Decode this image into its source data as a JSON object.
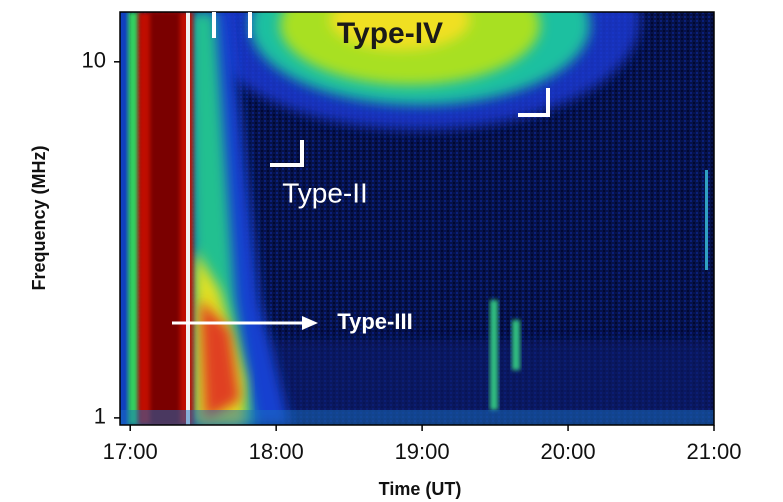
{
  "chart_data": {
    "type": "spectrogram",
    "xlabel": "Time (UT)",
    "ylabel": "Frequency (MHz)",
    "xlim": [
      16.93,
      21.0
    ],
    "xticks": [
      {
        "value": 17,
        "label": "17:00"
      },
      {
        "value": 18,
        "label": "18:00"
      },
      {
        "value": 19,
        "label": "19:00"
      },
      {
        "value": 20,
        "label": "20:00"
      },
      {
        "value": 21,
        "label": "21:00"
      }
    ],
    "ylim": [
      0.955,
      13.8
    ],
    "yscale": "log",
    "yticks": [
      1,
      10
    ],
    "annotations": [
      "Type-IV",
      "Type-II",
      "Type-III"
    ]
  }
}
